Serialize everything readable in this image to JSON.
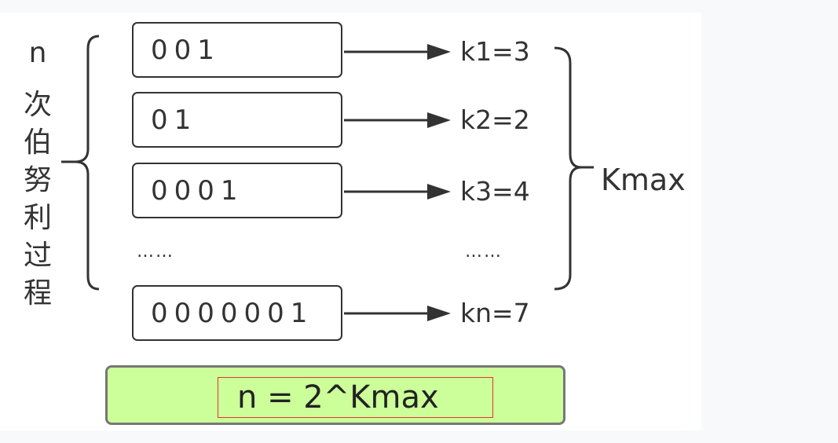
{
  "left_label": {
    "n": "n",
    "chars": [
      "次",
      "伯",
      "努",
      "利",
      "过",
      "程"
    ]
  },
  "rows": [
    {
      "bits": "001",
      "k": "k1=3"
    },
    {
      "bits": "01",
      "k": "k2=2"
    },
    {
      "bits": "0001",
      "k": "k3=4"
    },
    {
      "bits": "0000001",
      "k": "kn=7"
    }
  ],
  "ellipsis": "……",
  "kmax_label": "Kmax",
  "formula": "n = 2^Kmax",
  "colors": {
    "formula_box_fill": "#ccff99",
    "highlight_frame": "#e53333",
    "stroke": "#333333"
  }
}
